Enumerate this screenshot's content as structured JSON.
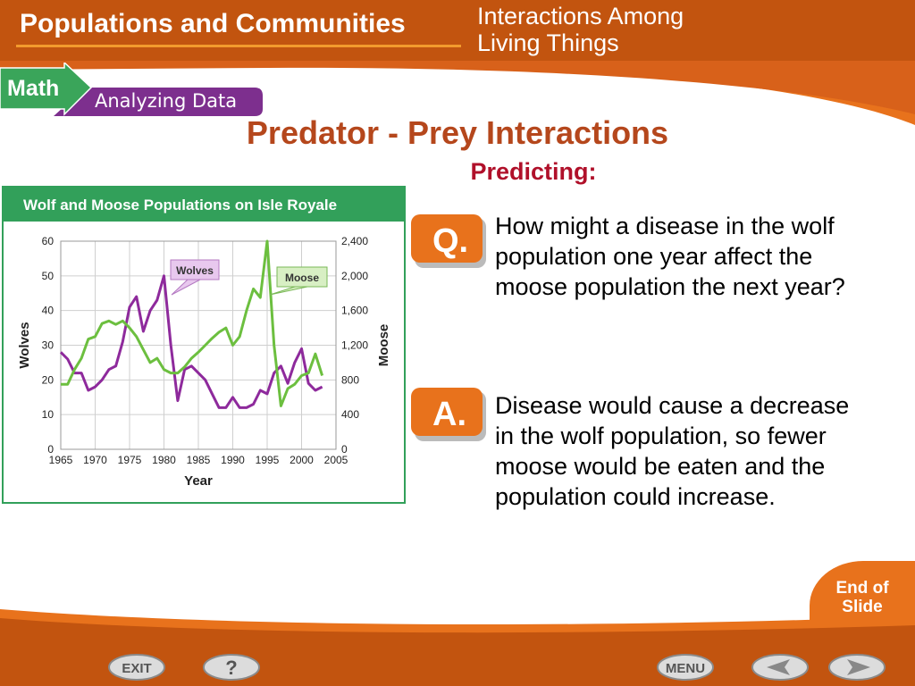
{
  "header": {
    "title": "Populations and Communities",
    "subtitle_line1": "Interactions Among",
    "subtitle_line2": "Living Things"
  },
  "badge": {
    "math": "Math",
    "analyzing": "Analyzing Data"
  },
  "slide": {
    "title": "Predator - Prey Interactions",
    "subtitle": "Predicting:"
  },
  "question": {
    "badge": "Q.",
    "text": "How might a disease in the wolf population one year affect the moose population the next year?"
  },
  "answer": {
    "badge": "A.",
    "text": "Disease would cause a decrease in the wolf population, so fewer moose would be eaten and the population could increase."
  },
  "nav": {
    "exit": "EXIT",
    "help": "?",
    "menu": "MENU",
    "end_of_slide": "End of\nSlide"
  },
  "colors": {
    "header": "#c2540f",
    "accent_orange": "#e8721c",
    "title_red": "#b5471c",
    "wolf_purple": "#8e2a9c",
    "moose_green": "#6cbf3f",
    "chart_green": "#32a05a"
  },
  "chart_data": {
    "type": "line",
    "title": "Wolf and Moose Populations on Isle Royale",
    "xlabel": "Year",
    "ylabel_left": "Wolves",
    "ylabel_right": "Moose",
    "xlim": [
      1965,
      2005
    ],
    "ylim_left": [
      0,
      60
    ],
    "ylim_right": [
      0,
      2400
    ],
    "x_ticks": [
      1965,
      1970,
      1975,
      1980,
      1985,
      1990,
      1995,
      2000,
      2005
    ],
    "y_ticks_left": [
      0,
      10,
      20,
      30,
      40,
      50,
      60
    ],
    "y_ticks_right": [
      "0",
      "400",
      "800",
      "1,200",
      "1,600",
      "2,000",
      "2,400"
    ],
    "grid": true,
    "series": [
      {
        "name": "Wolves",
        "axis": "left",
        "color": "#8e2a9c",
        "x": [
          1965,
          1966,
          1967,
          1968,
          1969,
          1970,
          1971,
          1972,
          1973,
          1974,
          1975,
          1976,
          1977,
          1978,
          1979,
          1980,
          1981,
          1982,
          1983,
          1984,
          1985,
          1986,
          1987,
          1988,
          1989,
          1990,
          1991,
          1992,
          1993,
          1994,
          1995,
          1996,
          1997,
          1998,
          1999,
          2000,
          2001,
          2002,
          2003
        ],
        "values": [
          28,
          26,
          22,
          22,
          17,
          18,
          20,
          23,
          24,
          31,
          41,
          44,
          34,
          40,
          43,
          50,
          30,
          14,
          23,
          24,
          22,
          20,
          16,
          12,
          12,
          15,
          12,
          12,
          13,
          17,
          16,
          22,
          24,
          19,
          25,
          29,
          19,
          17,
          18
        ]
      },
      {
        "name": "Moose",
        "axis": "right",
        "color": "#6cbf3f",
        "x": [
          1965,
          1966,
          1967,
          1968,
          1969,
          1970,
          1971,
          1972,
          1973,
          1974,
          1975,
          1976,
          1977,
          1978,
          1979,
          1980,
          1981,
          1982,
          1983,
          1984,
          1985,
          1986,
          1987,
          1988,
          1989,
          1990,
          1991,
          1992,
          1993,
          1994,
          1995,
          1996,
          1997,
          1998,
          1999,
          2000,
          2001,
          2002,
          2003
        ],
        "values": [
          750,
          750,
          920,
          1050,
          1270,
          1300,
          1450,
          1480,
          1440,
          1480,
          1400,
          1300,
          1150,
          1000,
          1050,
          920,
          880,
          880,
          950,
          1050,
          1120,
          1200,
          1280,
          1350,
          1400,
          1200,
          1300,
          1600,
          1850,
          1750,
          2400,
          1200,
          500,
          700,
          750,
          850,
          880,
          1100,
          850
        ]
      }
    ],
    "annotations": [
      "Wolves",
      "Moose"
    ]
  }
}
